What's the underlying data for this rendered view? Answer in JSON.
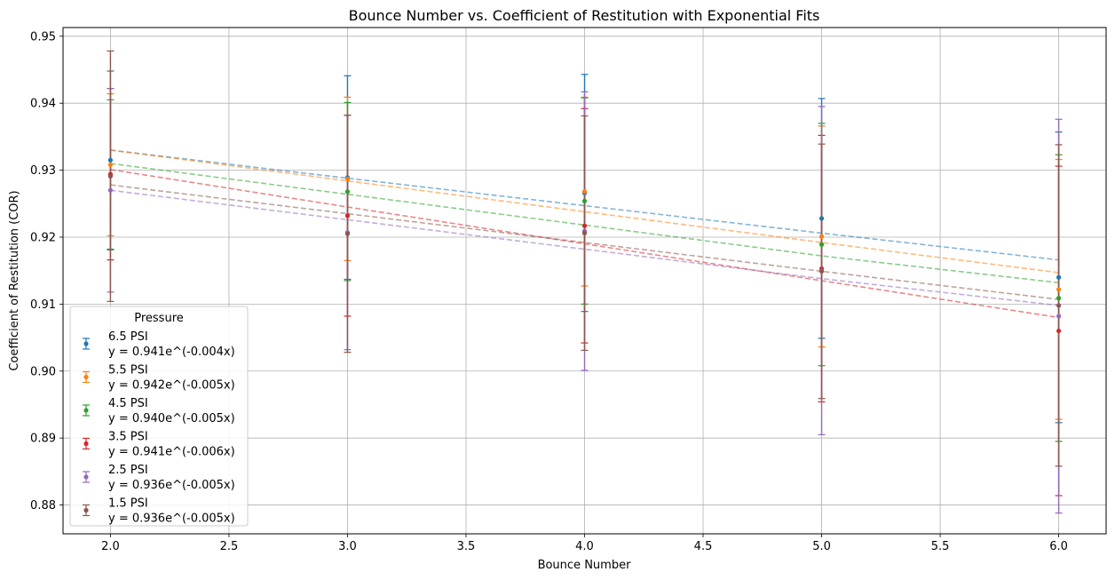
{
  "chart_data": {
    "type": "scatter",
    "title": "Bounce Number vs. Coefficient of Restitution with Exponential Fits",
    "xlabel": "Bounce Number",
    "ylabel": "Coefficient of Restitution (COR)",
    "xlim": [
      1.8,
      6.2
    ],
    "ylim": [
      0.8757,
      0.9513
    ],
    "xticks": [
      2.0,
      2.5,
      3.0,
      3.5,
      4.0,
      4.5,
      5.0,
      5.5,
      6.0
    ],
    "yticks": [
      0.88,
      0.89,
      0.9,
      0.91,
      0.92,
      0.93,
      0.94,
      0.95
    ],
    "grid": true,
    "legend": {
      "title": "Pressure",
      "placement": "lower-left"
    },
    "x": [
      2,
      3,
      4,
      5,
      6
    ],
    "series": [
      {
        "name": "6.5 PSI",
        "fit_label": "y = 0.941e^(-0.004x)",
        "color": "#1f77b4",
        "values": [
          0.9315,
          0.9289,
          0.9266,
          0.9228,
          0.914
        ],
        "errors": [
          0.0133,
          0.0152,
          0.0177,
          0.0179,
          0.0217
        ],
        "fit": [
          0.933,
          0.9288,
          0.9247,
          0.9206,
          0.9166
        ]
      },
      {
        "name": "5.5 PSI",
        "fit_label": "y = 0.942e^(-0.005x)",
        "color": "#ff7f0e",
        "values": [
          0.9308,
          0.9287,
          0.9268,
          0.9201,
          0.9122
        ],
        "errors": [
          0.0106,
          0.0122,
          0.0141,
          0.0165,
          0.0194
        ],
        "fit": [
          0.933,
          0.9284,
          0.9238,
          0.9192,
          0.9147
        ]
      },
      {
        "name": "4.5 PSI",
        "fit_label": "y = 0.940e^(-0.005x)",
        "color": "#2ca02c",
        "values": [
          0.9293,
          0.9268,
          0.9254,
          0.9189,
          0.9109
        ],
        "errors": [
          0.0112,
          0.0133,
          0.0154,
          0.0181,
          0.0214
        ],
        "fit": [
          0.931,
          0.9264,
          0.9218,
          0.9172,
          0.9132
        ]
      },
      {
        "name": "3.5 PSI",
        "fit_label": "y = 0.941e^(-0.006x)",
        "color": "#d62728",
        "values": [
          0.9294,
          0.9232,
          0.9217,
          0.9153,
          0.906
        ],
        "errors": [
          0.0128,
          0.015,
          0.0175,
          0.0199,
          0.0246
        ],
        "fit": [
          0.9301,
          0.9245,
          0.919,
          0.9135,
          0.908
        ]
      },
      {
        "name": "2.5 PSI",
        "fit_label": "y = 0.936e^(-0.005x)",
        "color": "#9467bd",
        "values": [
          0.927,
          0.9207,
          0.9209,
          0.915,
          0.9082
        ],
        "errors": [
          0.0152,
          0.0175,
          0.0208,
          0.0245,
          0.0294
        ],
        "fit": [
          0.927,
          0.9226,
          0.9182,
          0.9138,
          0.9098
        ]
      },
      {
        "name": "1.5 PSI",
        "fit_label": "y = 0.936e^(-0.005x)",
        "color": "#8c564b",
        "values": [
          0.9291,
          0.9205,
          0.9206,
          0.9149,
          0.9098
        ],
        "errors": [
          0.0187,
          0.0177,
          0.0175,
          0.019,
          0.024
        ],
        "fit": [
          0.9278,
          0.9235,
          0.9192,
          0.9149,
          0.9107
        ]
      }
    ]
  }
}
